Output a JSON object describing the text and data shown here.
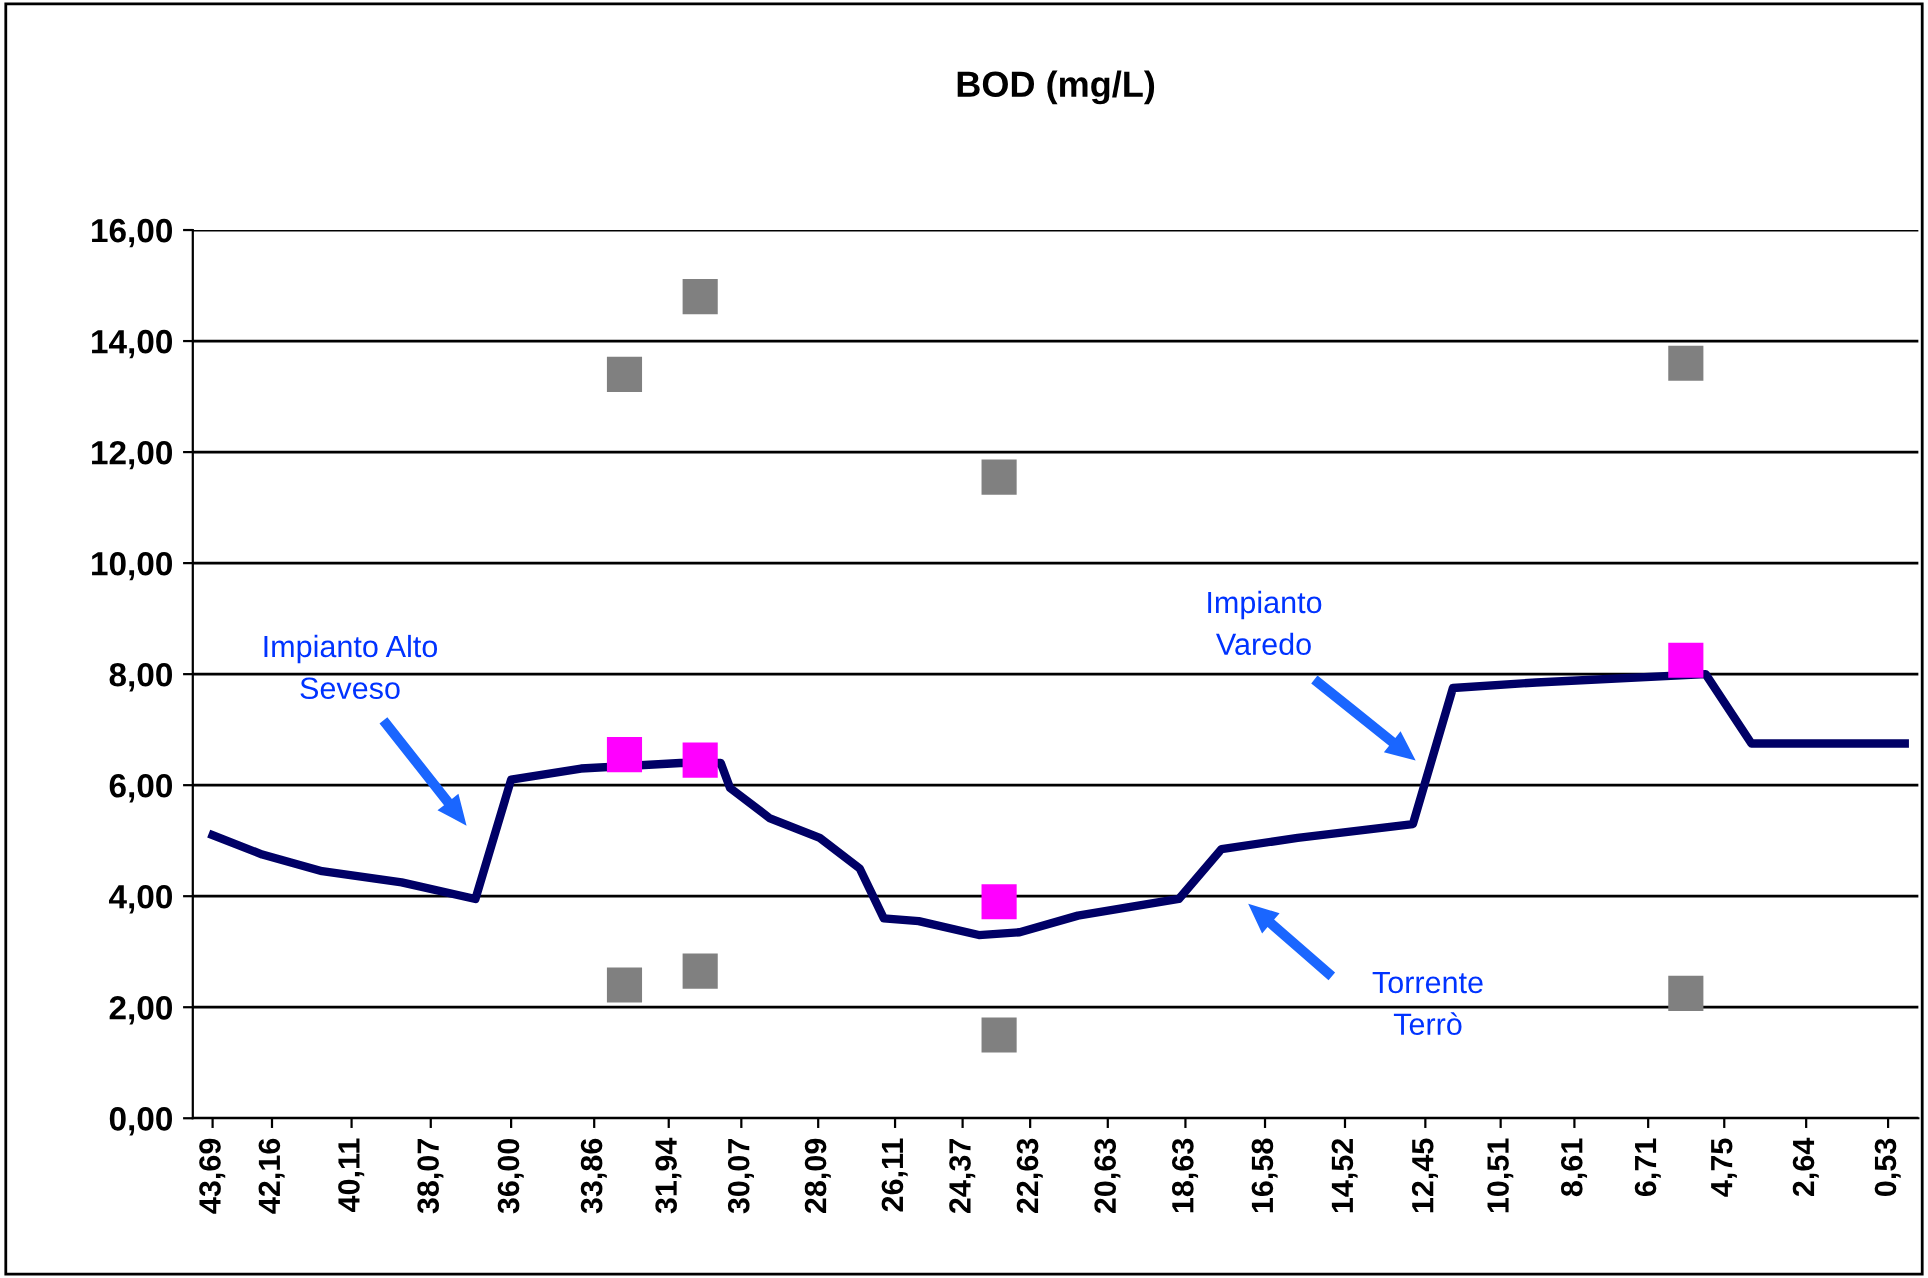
{
  "chart_data": {
    "type": "line",
    "title": "BOD (mg/L)",
    "series": [
      {
        "color": "#000066",
        "marker": "none",
        "x": [
          43.69,
          42.41,
          40.87,
          38.82,
          36.92,
          36.0,
          34.2,
          31.64,
          30.6,
          30.36,
          29.33,
          28.05,
          27.02,
          26.4,
          25.5,
          23.95,
          22.9,
          21.4,
          18.8,
          17.7,
          15.74,
          12.77,
          11.74,
          9.59,
          5.23,
          4.05,
          0.1
        ],
        "values": [
          5.1,
          4.75,
          4.45,
          4.25,
          3.95,
          6.1,
          6.3,
          6.4,
          6.4,
          5.95,
          5.4,
          5.05,
          4.5,
          3.6,
          3.55,
          3.3,
          3.35,
          3.65,
          3.95,
          4.85,
          5.05,
          5.3,
          7.75,
          7.85,
          8.0,
          6.75,
          6.75
        ]
      },
      {
        "type": "scatter",
        "color": "#808080",
        "marker": "square",
        "x": [
          33.08,
          31.13,
          23.43,
          5.74
        ],
        "values": [
          2.4,
          2.65,
          1.5,
          2.25
        ]
      },
      {
        "type": "scatter",
        "color": "#808080",
        "marker": "square",
        "x": [
          33.08,
          31.13,
          23.43,
          5.74
        ],
        "values": [
          13.4,
          14.8,
          11.55,
          13.6
        ]
      },
      {
        "type": "scatter",
        "color": "#ff00ff",
        "marker": "square",
        "x": [
          33.08,
          31.13,
          23.43,
          5.74
        ],
        "values": [
          6.55,
          6.45,
          3.9,
          8.25
        ]
      }
    ],
    "xlim": [
      44.2,
      -0.25
    ],
    "xticks": [
      {
        "value": 43.69,
        "label": "43,69"
      },
      {
        "value": 42.16,
        "label": "42,16"
      },
      {
        "value": 40.11,
        "label": "40,11"
      },
      {
        "value": 38.07,
        "label": "38,07"
      },
      {
        "value": 36.0,
        "label": "36,00"
      },
      {
        "value": 33.86,
        "label": "33,86"
      },
      {
        "value": 31.94,
        "label": "31,94"
      },
      {
        "value": 30.07,
        "label": "30,07"
      },
      {
        "value": 28.09,
        "label": "28,09"
      },
      {
        "value": 26.11,
        "label": "26,11"
      },
      {
        "value": 24.37,
        "label": "24,37"
      },
      {
        "value": 22.63,
        "label": "22,63"
      },
      {
        "value": 20.63,
        "label": "20,63"
      },
      {
        "value": 18.63,
        "label": "18,63"
      },
      {
        "value": 16.58,
        "label": "16,58"
      },
      {
        "value": 14.52,
        "label": "14,52"
      },
      {
        "value": 12.45,
        "label": "12,45"
      },
      {
        "value": 10.51,
        "label": "10,51"
      },
      {
        "value": 8.61,
        "label": "8,61"
      },
      {
        "value": 6.71,
        "label": "6,71"
      },
      {
        "value": 4.75,
        "label": "4,75"
      },
      {
        "value": 2.64,
        "label": "2,64"
      },
      {
        "value": 0.53,
        "label": "0,53"
      }
    ],
    "ylim": [
      0,
      16
    ],
    "yticks": [
      {
        "value": 0,
        "label": "0,00"
      },
      {
        "value": 2,
        "label": "2,00"
      },
      {
        "value": 4,
        "label": "4,00"
      },
      {
        "value": 6,
        "label": "6,00"
      },
      {
        "value": 8,
        "label": "8,00"
      },
      {
        "value": 10,
        "label": "10,00"
      },
      {
        "value": 12,
        "label": "12,00"
      },
      {
        "value": 14,
        "label": "14,00"
      },
      {
        "value": 16,
        "label": "16,00"
      }
    ],
    "grid": "y",
    "annotations": [
      "Impianto Alto\nSeveso",
      "Impianto\nVaredo",
      "Torrente\nTerrò"
    ]
  }
}
